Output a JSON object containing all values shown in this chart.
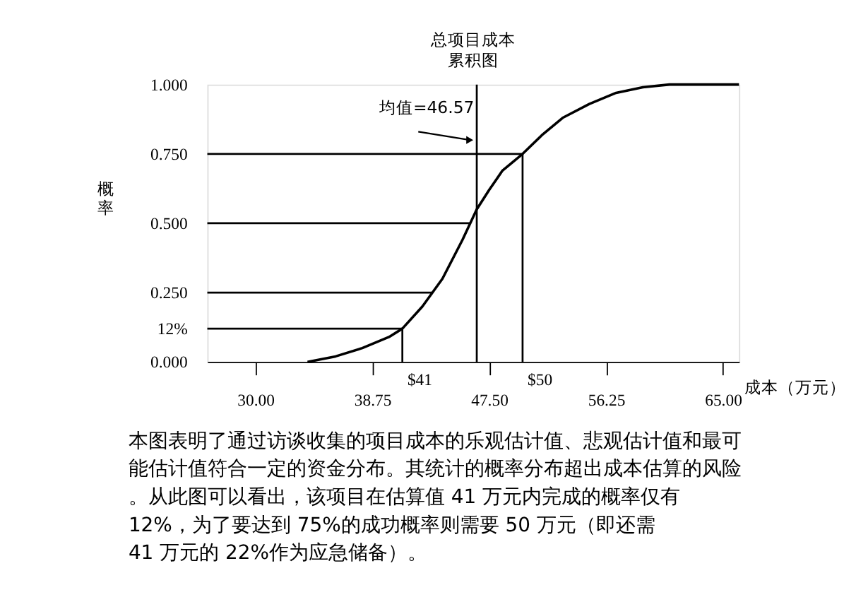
{
  "chart_data": {
    "type": "line",
    "title": "总项目成本",
    "subtitle": "累积图",
    "xlabel": "成本（万元）",
    "ylabel": "概率",
    "x": [
      33.9,
      36,
      38,
      40,
      41,
      42.5,
      44,
      45.5,
      46.57,
      47.5,
      48.5,
      50,
      51.5,
      53,
      55,
      57,
      59,
      61,
      66.2
    ],
    "series": [
      {
        "color": "#000000",
        "values": [
          0,
          0.02,
          0.05,
          0.09,
          0.12,
          0.2,
          0.3,
          0.44,
          0.55,
          0.62,
          0.69,
          0.75,
          0.82,
          0.88,
          0.93,
          0.97,
          0.99,
          1.0,
          1.0
        ]
      }
    ],
    "xlim": [
      26.4,
      66.2
    ],
    "ylim": [
      0,
      1
    ],
    "xticks": [
      {
        "value": 30,
        "label": "30.00"
      },
      {
        "value": 38.75,
        "label": "38.75"
      },
      {
        "value": 47.5,
        "label": "47.50"
      },
      {
        "value": 56.25,
        "label": "56.25"
      },
      {
        "value": 65,
        "label": "65.00"
      }
    ],
    "yticks": [
      {
        "value": 0,
        "label": "0.000"
      },
      {
        "value": 0.12,
        "label": "12%"
      },
      {
        "value": 0.25,
        "label": "0.250"
      },
      {
        "value": 0.5,
        "label": "0.500"
      },
      {
        "value": 0.75,
        "label": "0.750"
      },
      {
        "value": 1,
        "label": "1.000"
      }
    ],
    "ref_lines": [
      {
        "axis": "x",
        "value": 41,
        "label": "$41"
      },
      {
        "axis": "x",
        "value": 50,
        "label": "$50"
      },
      {
        "axis": "x",
        "value": 46.57
      },
      {
        "axis": "y",
        "value": 0.12
      },
      {
        "axis": "y",
        "value": 0.25
      },
      {
        "axis": "y",
        "value": 0.5
      },
      {
        "axis": "y",
        "value": 0.75
      }
    ],
    "annotations": [
      {
        "text": "均值=46.57",
        "x": 46.57,
        "y": 0.8
      },
      "本图表明了通过访谈收集的项目成本的乐观估计值、悲观估计值和最可能估计值符合一定的资金分布。其统计的概率分布超出成本估算的风险。从此图可以看出，该项目在估算值 41 万元内完成的概率仅有 12%，为了要达到 75%的成功概率则需要 50 万元（即还需 41 万元的 22%作为应急储备）。"
    ],
    "grid": false,
    "marker": "none",
    "line_style": "solid"
  }
}
